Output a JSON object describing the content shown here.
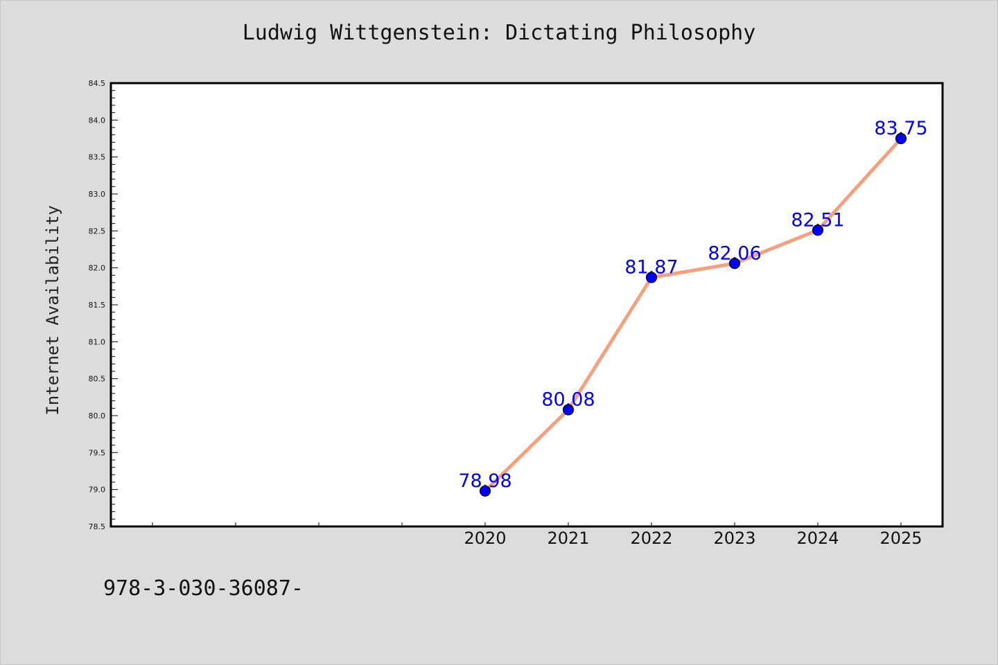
{
  "chart_data": {
    "type": "line",
    "title": "Ludwig Wittgenstein: Dictating Philosophy",
    "xlabel": "",
    "ylabel": "Internet Availability",
    "x": [
      "2020",
      "2021",
      "2022",
      "2023",
      "2024",
      "2025"
    ],
    "series": [
      {
        "values": [
          78.98,
          80.08,
          81.87,
          82.06,
          82.51,
          83.75
        ],
        "labels": [
          "78.98",
          "80.08",
          "81.87",
          "82.06",
          "82.51",
          "83.75"
        ]
      }
    ],
    "ylim": [
      78.5,
      84.5
    ],
    "yticks": [
      "78.5",
      "79.0",
      "79.5",
      "80.0",
      "80.5",
      "81.0",
      "81.5",
      "82.0",
      "82.5",
      "83.0",
      "83.5",
      "84.0",
      "84.5"
    ],
    "grid": false,
    "line_color": "#f4a07e",
    "marker_color": "#0000ff",
    "label_color": "#0000ff"
  },
  "footer": {
    "code": "978-3-030-36087-"
  }
}
